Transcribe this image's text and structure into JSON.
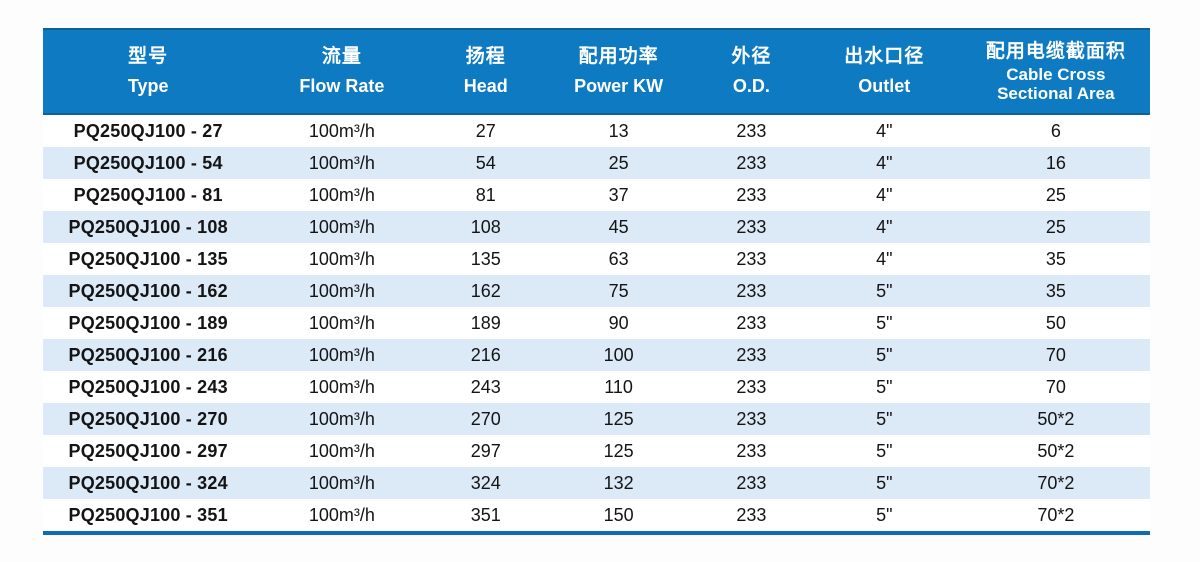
{
  "document": {
    "kind": "pump-specification-table"
  },
  "colors": {
    "header_bg": "#0e7ac2",
    "header_edge": "#0d6397",
    "header_text": "#ffffff",
    "stripe": "#dce9f6",
    "bottom_border": "#0f6cb4",
    "body_text": "#141414",
    "page_bg": "#fdfdfd"
  },
  "table": {
    "columns": [
      {
        "id": "type",
        "zh": "型号",
        "en": "Type"
      },
      {
        "id": "flow-rate",
        "zh": "流量",
        "en": "Flow Rate"
      },
      {
        "id": "head",
        "zh": "扬程",
        "en": "Head"
      },
      {
        "id": "power-kw",
        "zh": "配用功率",
        "en": "Power KW"
      },
      {
        "id": "od",
        "zh": "外径",
        "en": "O.D."
      },
      {
        "id": "outlet",
        "zh": "出水口径",
        "en": "Outlet"
      },
      {
        "id": "cable-cross-sectional-area",
        "zh": "配用电缆截面积",
        "en": "Cable Cross",
        "en2": "Sectional Area"
      }
    ],
    "rows": [
      [
        "PQ250QJ100 - 27",
        "100m³/h",
        "27",
        "13",
        "233",
        "4\"",
        "6"
      ],
      [
        "PQ250QJ100 - 54",
        "100m³/h",
        "54",
        "25",
        "233",
        "4\"",
        "16"
      ],
      [
        "PQ250QJ100 - 81",
        "100m³/h",
        "81",
        "37",
        "233",
        "4\"",
        "25"
      ],
      [
        "PQ250QJ100 - 108",
        "100m³/h",
        "108",
        "45",
        "233",
        "4\"",
        "25"
      ],
      [
        "PQ250QJ100 - 135",
        "100m³/h",
        "135",
        "63",
        "233",
        "4\"",
        "35"
      ],
      [
        "PQ250QJ100 - 162",
        "100m³/h",
        "162",
        "75",
        "233",
        "5\"",
        "35"
      ],
      [
        "PQ250QJ100 - 189",
        "100m³/h",
        "189",
        "90",
        "233",
        "5\"",
        "50"
      ],
      [
        "PQ250QJ100 - 216",
        "100m³/h",
        "216",
        "100",
        "233",
        "5\"",
        "70"
      ],
      [
        "PQ250QJ100 - 243",
        "100m³/h",
        "243",
        "110",
        "233",
        "5\"",
        "70"
      ],
      [
        "PQ250QJ100 - 270",
        "100m³/h",
        "270",
        "125",
        "233",
        "5\"",
        "50*2"
      ],
      [
        "PQ250QJ100 - 297",
        "100m³/h",
        "297",
        "125",
        "233",
        "5\"",
        "50*2"
      ],
      [
        "PQ250QJ100 - 324",
        "100m³/h",
        "324",
        "132",
        "233",
        "5\"",
        "70*2"
      ],
      [
        "PQ250QJ100 - 351",
        "100m³/h",
        "351",
        "150",
        "233",
        "5\"",
        "70*2"
      ]
    ]
  }
}
